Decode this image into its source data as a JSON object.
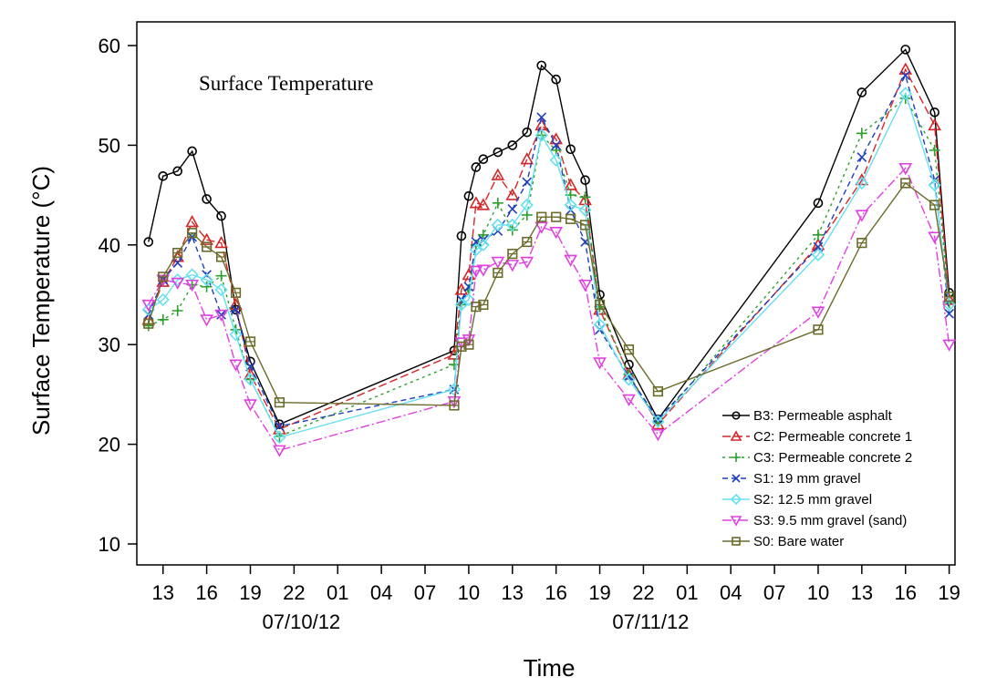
{
  "chart_data": {
    "type": "line",
    "title": "Surface Temperature",
    "xlabel": "Time",
    "ylabel": "Surface Temperature (°C)",
    "ylim": [
      10,
      60
    ],
    "xlim": [
      11.2,
      67.4
    ],
    "x_unit": "hour of day",
    "y_ticks": [
      10,
      20,
      30,
      40,
      50,
      60
    ],
    "x_ticks": [
      {
        "x": 13,
        "label": "13"
      },
      {
        "x": 16,
        "label": "16"
      },
      {
        "x": 19,
        "label": "19"
      },
      {
        "x": 22,
        "label": "22"
      },
      {
        "x": 25,
        "label": "01"
      },
      {
        "x": 28,
        "label": "04"
      },
      {
        "x": 31,
        "label": "07"
      },
      {
        "x": 34,
        "label": "10"
      },
      {
        "x": 37,
        "label": "13"
      },
      {
        "x": 40,
        "label": "16"
      },
      {
        "x": 43,
        "label": "19"
      },
      {
        "x": 46,
        "label": "22"
      },
      {
        "x": 49,
        "label": "01"
      },
      {
        "x": 52,
        "label": "04"
      },
      {
        "x": 55,
        "label": "07"
      },
      {
        "x": 58,
        "label": "10"
      },
      {
        "x": 61,
        "label": "13"
      },
      {
        "x": 64,
        "label": "16"
      },
      {
        "x": 67,
        "label": "19"
      }
    ],
    "date_labels": [
      {
        "x": 22.5,
        "label": "07/10/12"
      },
      {
        "x": 46.5,
        "label": "07/11/12"
      }
    ],
    "grid": false,
    "legend": "bottom-right",
    "series": [
      {
        "name": "B3: Permeable asphalt",
        "color": "#000000",
        "marker": "circle",
        "dash": "",
        "points": [
          [
            12,
            40.3
          ],
          [
            13,
            46.9
          ],
          [
            14,
            47.4
          ],
          [
            15,
            49.4
          ],
          [
            16,
            44.6
          ],
          [
            17,
            42.9
          ],
          [
            18,
            33.5
          ],
          [
            19,
            28.3
          ],
          [
            21,
            22.0
          ],
          [
            33,
            29.4
          ],
          [
            33.5,
            40.9
          ],
          [
            34,
            44.9
          ],
          [
            34.5,
            47.8
          ],
          [
            35,
            48.6
          ],
          [
            36,
            49.3
          ],
          [
            37,
            50.0
          ],
          [
            38,
            51.3
          ],
          [
            39,
            58.0
          ],
          [
            40,
            56.6
          ],
          [
            41,
            49.6
          ],
          [
            42,
            46.5
          ],
          [
            43,
            35.0
          ],
          [
            45,
            28.0
          ],
          [
            47,
            22.5
          ],
          [
            58,
            44.2
          ],
          [
            61,
            55.3
          ],
          [
            64,
            59.6
          ],
          [
            66,
            53.3
          ],
          [
            67,
            35.2
          ]
        ]
      },
      {
        "name": "C2: Permeable concrete 1",
        "color": "#d62728",
        "marker": "triangle-up",
        "dash": "9,4",
        "points": [
          [
            12,
            32.5
          ],
          [
            13,
            36.3
          ],
          [
            14,
            38.8
          ],
          [
            15,
            42.3
          ],
          [
            16,
            40.5
          ],
          [
            17,
            40.2
          ],
          [
            18,
            34.0
          ],
          [
            19,
            27.0
          ],
          [
            21,
            21.5
          ],
          [
            33,
            29.0
          ],
          [
            33.5,
            35.5
          ],
          [
            34,
            37.0
          ],
          [
            34.5,
            44.2
          ],
          [
            35,
            44.0
          ],
          [
            36,
            47.0
          ],
          [
            37,
            45.0
          ],
          [
            38,
            48.6
          ],
          [
            39,
            52.0
          ],
          [
            40,
            50.6
          ],
          [
            41,
            46.0
          ],
          [
            42,
            44.5
          ],
          [
            43,
            33.5
          ],
          [
            45,
            27.0
          ],
          [
            47,
            22.0
          ],
          [
            58,
            40.0
          ],
          [
            61,
            46.5
          ],
          [
            64,
            57.6
          ],
          [
            66,
            52.0
          ],
          [
            67,
            34.5
          ]
        ]
      },
      {
        "name": "C3: Permeable concrete 2",
        "color": "#2ca02c",
        "marker": "plus",
        "dash": "3,4",
        "points": [
          [
            12,
            31.9
          ],
          [
            13,
            32.5
          ],
          [
            14,
            33.4
          ],
          [
            15,
            36.0
          ],
          [
            16,
            35.8
          ],
          [
            17,
            36.9
          ],
          [
            18,
            31.5
          ],
          [
            19,
            26.5
          ],
          [
            21,
            20.8
          ],
          [
            33,
            28.0
          ],
          [
            33.5,
            34.0
          ],
          [
            34,
            35.5
          ],
          [
            34.5,
            40.0
          ],
          [
            35,
            41.0
          ],
          [
            36,
            44.2
          ],
          [
            37,
            41.5
          ],
          [
            38,
            43.0
          ],
          [
            39,
            51.0
          ],
          [
            40,
            49.5
          ],
          [
            41,
            45.0
          ],
          [
            42,
            44.8
          ],
          [
            43,
            33.8
          ],
          [
            45,
            27.0
          ],
          [
            47,
            22.2
          ],
          [
            58,
            41.0
          ],
          [
            61,
            51.2
          ],
          [
            64,
            54.7
          ],
          [
            66,
            49.5
          ],
          [
            67,
            34.2
          ]
        ]
      },
      {
        "name": "S1: 19 mm gravel",
        "color": "#1f3fbf",
        "marker": "x",
        "dash": "6,4",
        "points": [
          [
            12,
            33.0
          ],
          [
            13,
            36.5
          ],
          [
            14,
            38.2
          ],
          [
            15,
            40.8
          ],
          [
            16,
            37.0
          ],
          [
            17,
            33.0
          ],
          [
            18,
            33.5
          ],
          [
            19,
            27.8
          ],
          [
            21,
            21.8
          ],
          [
            33,
            25.5
          ],
          [
            33.5,
            34.5
          ],
          [
            34,
            35.8
          ],
          [
            34.5,
            40.3
          ],
          [
            35,
            40.5
          ],
          [
            36,
            41.4
          ],
          [
            37,
            43.6
          ],
          [
            38,
            46.3
          ],
          [
            39,
            52.8
          ],
          [
            40,
            50.0
          ],
          [
            41,
            43.5
          ],
          [
            42,
            40.3
          ],
          [
            43,
            31.5
          ],
          [
            45,
            26.8
          ],
          [
            47,
            22.5
          ],
          [
            58,
            39.8
          ],
          [
            61,
            48.8
          ],
          [
            64,
            57.0
          ],
          [
            66,
            46.5
          ],
          [
            67,
            33.1
          ]
        ]
      },
      {
        "name": "S2: 12.5 mm gravel",
        "color": "#66e0f0",
        "marker": "diamond",
        "dash": "",
        "points": [
          [
            12,
            33.5
          ],
          [
            13,
            34.5
          ],
          [
            14,
            36.5
          ],
          [
            15,
            37.0
          ],
          [
            16,
            36.5
          ],
          [
            17,
            35.5
          ],
          [
            18,
            31.0
          ],
          [
            19,
            26.5
          ],
          [
            21,
            20.7
          ],
          [
            33,
            25.5
          ],
          [
            33.5,
            34.0
          ],
          [
            34,
            34.5
          ],
          [
            34.5,
            39.5
          ],
          [
            35,
            40.0
          ],
          [
            36,
            42.0
          ],
          [
            37,
            42.0
          ],
          [
            38,
            44.0
          ],
          [
            39,
            51.0
          ],
          [
            40,
            48.5
          ],
          [
            41,
            44.0
          ],
          [
            42,
            43.5
          ],
          [
            43,
            32.0
          ],
          [
            45,
            26.5
          ],
          [
            47,
            22.3
          ],
          [
            58,
            39.0
          ],
          [
            61,
            46.2
          ],
          [
            64,
            55.2
          ],
          [
            66,
            46.0
          ],
          [
            67,
            34.0
          ]
        ]
      },
      {
        "name": "S3: 9.5 mm gravel (sand)",
        "color": "#e040e0",
        "marker": "triangle-down",
        "dash": "10,3,2,3",
        "points": [
          [
            12,
            34.0
          ],
          [
            13,
            36.5
          ],
          [
            14,
            36.2
          ],
          [
            15,
            36.0
          ],
          [
            16,
            32.5
          ],
          [
            17,
            33.0
          ],
          [
            18,
            28.0
          ],
          [
            19,
            24.0
          ],
          [
            21,
            19.4
          ],
          [
            33,
            24.3
          ],
          [
            33.5,
            30.2
          ],
          [
            34,
            30.5
          ],
          [
            34.5,
            37.4
          ],
          [
            35,
            37.5
          ],
          [
            36,
            38.3
          ],
          [
            37,
            38.0
          ],
          [
            38,
            38.3
          ],
          [
            39,
            41.8
          ],
          [
            40,
            41.3
          ],
          [
            41,
            38.5
          ],
          [
            42,
            36.0
          ],
          [
            43,
            28.2
          ],
          [
            45,
            24.5
          ],
          [
            47,
            21.0
          ],
          [
            58,
            33.3
          ],
          [
            61,
            43.0
          ],
          [
            64,
            47.7
          ],
          [
            66,
            40.8
          ],
          [
            67,
            30.0
          ]
        ]
      },
      {
        "name": "S0: Bare water",
        "color": "#6b6b2a",
        "marker": "square",
        "dash": "",
        "points": [
          [
            12,
            32.1
          ],
          [
            13,
            36.8
          ],
          [
            14,
            39.2
          ],
          [
            15,
            41.2
          ],
          [
            16,
            39.8
          ],
          [
            17,
            38.8
          ],
          [
            18,
            35.2
          ],
          [
            19,
            30.3
          ],
          [
            21,
            24.2
          ],
          [
            33,
            23.9
          ],
          [
            33.5,
            29.8
          ],
          [
            34,
            30.0
          ],
          [
            34.5,
            33.8
          ],
          [
            35,
            34.0
          ],
          [
            36,
            37.2
          ],
          [
            37,
            39.1
          ],
          [
            38,
            40.3
          ],
          [
            39,
            42.8
          ],
          [
            40,
            42.8
          ],
          [
            41,
            42.6
          ],
          [
            42,
            42.0
          ],
          [
            43,
            34.0
          ],
          [
            45,
            29.5
          ],
          [
            47,
            25.3
          ],
          [
            58,
            31.5
          ],
          [
            61,
            40.2
          ],
          [
            64,
            46.2
          ],
          [
            66,
            44.0
          ],
          [
            67,
            34.8
          ]
        ]
      }
    ]
  }
}
